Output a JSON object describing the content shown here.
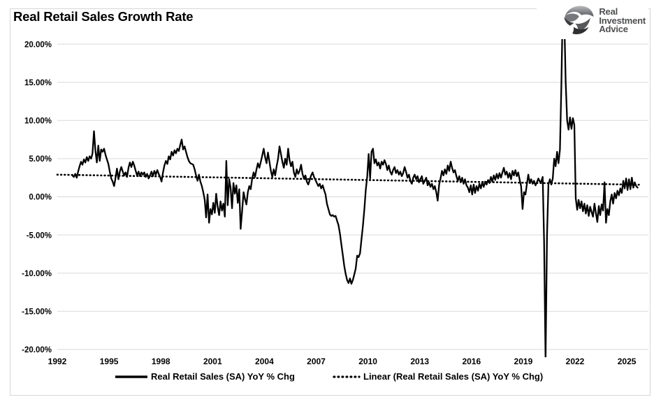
{
  "logo": {
    "company": "Real Investment Advice",
    "lines": [
      "Real",
      "Investment",
      "Advice"
    ]
  },
  "chart_data": {
    "type": "line",
    "title": "Real Retail Sales Growth Rate",
    "xlabel": "",
    "ylabel": "",
    "grid": "horizontal",
    "legend_position": "bottom",
    "ylim": [
      -21,
      20.6
    ],
    "xlim": [
      1992,
      2026
    ],
    "y_axis": {
      "ticks": [
        {
          "value": 20,
          "label": "20.00%"
        },
        {
          "value": 15,
          "label": "15.00%"
        },
        {
          "value": 10,
          "label": "10.00%"
        },
        {
          "value": 5,
          "label": "5.00%"
        },
        {
          "value": 0,
          "label": "0.00%"
        },
        {
          "value": -5,
          "label": "-5.00%"
        },
        {
          "value": -10,
          "label": "-10.00%"
        },
        {
          "value": -15,
          "label": "-15.00%"
        },
        {
          "value": -20,
          "label": "-20.00%"
        }
      ]
    },
    "x_axis": {
      "ticks": [
        {
          "year": 1992,
          "label": "1992"
        },
        {
          "year": 1995,
          "label": "1995"
        },
        {
          "year": 1998,
          "label": "1998"
        },
        {
          "year": 2001,
          "label": "2001"
        },
        {
          "year": 2004,
          "label": "2004"
        },
        {
          "year": 2007,
          "label": "2007"
        },
        {
          "year": 2010,
          "label": "2010"
        },
        {
          "year": 2013,
          "label": "2013"
        },
        {
          "year": 2016,
          "label": "2016"
        },
        {
          "year": 2019,
          "label": "2019"
        },
        {
          "year": 2022,
          "label": "2022"
        },
        {
          "year": 2025,
          "label": "2025"
        }
      ]
    },
    "series": [
      {
        "name": "Real Retail Sales (SA) YoY % Chg",
        "line_style": "solid",
        "color": "#000000",
        "frequency": "monthly",
        "unit": "percent",
        "data": [
          {
            "year": 1992,
            "start_month": 11,
            "values": [
              2.8,
              2.6
            ]
          },
          {
            "year": 1993,
            "values": [
              3.0,
              2.5,
              3.3,
              4.0,
              4.6,
              4.2,
              4.9,
              4.5,
              5.2,
              4.7,
              5.3,
              5.0
            ]
          },
          {
            "year": 1994,
            "values": [
              5.7,
              8.6,
              6.1,
              4.5,
              6.7,
              4.7,
              6.2,
              5.9,
              6.3,
              5.5,
              4.9,
              4.3
            ]
          },
          {
            "year": 1995,
            "values": [
              3.3,
              2.4,
              2.0,
              1.4,
              2.5,
              3.7,
              2.3,
              3.3,
              3.9,
              3.3,
              2.8,
              3.2
            ]
          },
          {
            "year": 1996,
            "values": [
              2.6,
              3.8,
              4.5,
              3.9,
              4.6,
              4.1,
              3.4,
              2.8,
              3.3,
              2.7,
              3.2,
              2.9
            ]
          },
          {
            "year": 1997,
            "values": [
              3.2,
              2.6,
              3.0,
              2.4,
              2.8,
              3.3,
              2.7,
              3.4,
              2.9,
              3.5,
              3.0,
              2.6
            ]
          },
          {
            "year": 1998,
            "values": [
              2.0,
              3.2,
              4.1,
              4.7,
              4.3,
              5.3,
              4.9,
              5.9,
              5.4,
              6.1,
              5.7,
              6.3
            ]
          },
          {
            "year": 1999,
            "values": [
              6.0,
              6.8,
              7.5,
              6.2,
              6.6,
              5.9,
              5.2,
              4.7,
              4.4,
              4.3,
              4.2,
              3.6
            ]
          },
          {
            "year": 2000,
            "values": [
              2.8,
              2.1,
              2.9,
              2.0,
              1.4,
              0.6,
              -0.4,
              -2.7,
              0.3,
              -3.4,
              -1.6,
              -2.3
            ]
          },
          {
            "year": 2001,
            "values": [
              -0.8,
              -2.1,
              0.4,
              -1.3,
              -2.4,
              -0.6,
              -1.8,
              -0.9,
              -2.6,
              4.7,
              -1.1,
              2.3
            ]
          },
          {
            "year": 2002,
            "values": [
              1.2,
              -1.5,
              1.8,
              0.4,
              1.5,
              -0.8,
              1.0,
              -4.2,
              -1.9,
              0.6,
              -0.3,
              -1.0
            ]
          },
          {
            "year": 2003,
            "values": [
              0.6,
              1.4,
              1.0,
              2.4,
              3.2,
              2.6,
              3.6,
              4.4,
              3.8,
              4.6,
              5.4,
              6.3
            ]
          },
          {
            "year": 2004,
            "values": [
              5.2,
              4.4,
              5.8,
              4.6,
              3.4,
              2.6,
              3.6,
              2.8,
              4.0,
              5.0,
              6.6,
              5.6
            ]
          },
          {
            "year": 2005,
            "values": [
              4.6,
              3.8,
              5.0,
              4.2,
              6.3,
              4.8,
              4.0,
              4.6,
              3.2,
              2.6,
              3.6,
              3.0
            ]
          },
          {
            "year": 2006,
            "values": [
              3.4,
              4.2,
              3.0,
              2.4,
              2.8,
              2.0,
              1.6,
              2.2,
              2.8,
              3.2,
              2.6,
              2.2
            ]
          },
          {
            "year": 2007,
            "values": [
              1.8,
              1.4,
              1.7,
              1.1,
              1.5,
              0.9,
              0.3,
              -0.9,
              -1.6,
              -2.3,
              -2.5,
              -2.4
            ]
          },
          {
            "year": 2008,
            "values": [
              -2.6,
              -2.5,
              -3.1,
              -3.7,
              -4.8,
              -6.2,
              -7.6,
              -9.0,
              -10.1,
              -10.9,
              -11.3,
              -10.7
            ]
          },
          {
            "year": 2009,
            "values": [
              -11.4,
              -10.9,
              -10.2,
              -9.4,
              -7.7,
              -7.9,
              -7.4,
              -5.6,
              -3.8,
              -1.6,
              0.9,
              2.7
            ]
          },
          {
            "year": 2010,
            "values": [
              5.6,
              2.4,
              5.9,
              6.3,
              4.4,
              4.9,
              4.1,
              4.5,
              3.7,
              4.6,
              4.2,
              4.8
            ]
          },
          {
            "year": 2011,
            "values": [
              4.3,
              3.5,
              4.1,
              3.3,
              2.9,
              3.5,
              3.9,
              3.1,
              3.5,
              2.9,
              3.3,
              2.7
            ]
          },
          {
            "year": 2012,
            "values": [
              3.1,
              3.9,
              3.3,
              2.5,
              2.9,
              2.1,
              1.7,
              2.5,
              2.9,
              2.3,
              2.7,
              1.9
            ]
          },
          {
            "year": 2013,
            "values": [
              2.3,
              2.7,
              1.7,
              2.1,
              2.5,
              1.5,
              1.9,
              1.3,
              1.7,
              1.0,
              1.4,
              0.6
            ]
          },
          {
            "year": 2014,
            "values": [
              -0.5,
              1.6,
              2.4,
              3.4,
              2.8,
              3.6,
              3.0,
              4.1,
              3.4,
              4.6,
              3.8,
              3.2
            ]
          },
          {
            "year": 2015,
            "values": [
              3.5,
              2.7,
              2.1,
              2.7,
              1.9,
              2.5,
              1.7,
              2.3,
              1.5,
              1.2,
              0.6,
              1.5
            ]
          },
          {
            "year": 2016,
            "values": [
              0.3,
              1.6,
              0.5,
              1.4,
              0.8,
              1.7,
              1.1,
              1.9,
              1.3,
              2.0,
              1.6,
              2.2
            ]
          },
          {
            "year": 2017,
            "values": [
              1.8,
              2.6,
              2.0,
              2.8,
              2.2,
              3.0,
              2.4,
              3.1,
              2.5,
              3.2,
              3.8,
              2.9
            ]
          },
          {
            "year": 2018,
            "values": [
              3.3,
              2.5,
              3.1,
              2.3,
              3.4,
              2.8,
              3.5,
              2.7,
              3.2,
              2.2,
              1.4,
              -1.6
            ]
          },
          {
            "year": 2019,
            "values": [
              0.6,
              0.3,
              1.6,
              2.9,
              1.8,
              2.3,
              1.7,
              2.1,
              1.5,
              1.9,
              2.4,
              2.0
            ]
          },
          {
            "year": 2020,
            "values": [
              2.0,
              2.6,
              -5.8,
              -21.5,
              -5.0,
              1.6,
              2.3,
              1.6,
              2.4,
              5.0,
              4.0,
              5.9
            ]
          },
          {
            "year": 2021,
            "values": [
              4.4,
              6.2,
              14.5,
              25.5,
              23.5,
              15.0,
              10.0,
              8.8,
              10.4,
              8.9,
              10.3,
              9.4
            ]
          },
          {
            "year": 2022,
            "values": [
              -0.2,
              -1.7,
              -0.4,
              -1.5,
              -0.6,
              -1.9,
              -0.9,
              -2.2,
              -1.1,
              -2.5,
              -1.3,
              -2.0
            ]
          },
          {
            "year": 2023,
            "values": [
              -2.6,
              -0.9,
              -2.1,
              -3.3,
              -1.2,
              -2.4,
              -1.0,
              -1.8,
              1.9,
              -3.4,
              -1.6,
              -2.4
            ]
          },
          {
            "year": 2024,
            "values": [
              -0.6,
              0.3,
              -0.9,
              0.5,
              -0.2,
              0.8,
              0.2,
              1.1,
              0.5,
              2.1,
              1.1,
              2.4
            ]
          },
          {
            "year": 2025,
            "values": [
              0.9,
              2.3,
              1.0,
              2.5,
              1.2,
              1.9,
              1.4,
              1.2
            ]
          }
        ]
      },
      {
        "name": "Linear (Real Retail Sales (SA) YoY % Chg)",
        "line_style": "dotted",
        "color": "#000000",
        "trend": {
          "x_start": 1992.0,
          "value_start": 2.9,
          "x_end": 2025.7,
          "value_end": 1.58
        }
      }
    ]
  },
  "colors": {
    "gridline": "#d9d9d9",
    "series_line": "#000000",
    "trend_line": "#000000",
    "text": "#000000",
    "logo_text": "#4d4e50",
    "background": "#ffffff"
  }
}
